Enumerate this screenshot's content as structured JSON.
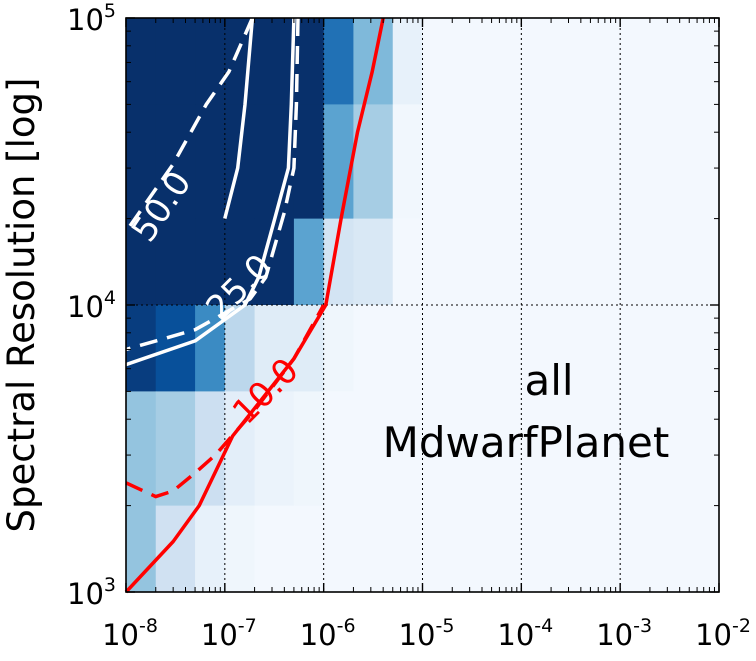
{
  "chart_data": {
    "type": "heatmap",
    "title": "",
    "xlabel": "",
    "ylabel": "Spectral Resolution [log]",
    "x_scale": "log",
    "y_scale": "log",
    "xlim": [
      1e-08,
      0.01
    ],
    "ylim": [
      1000,
      100000
    ],
    "grid": true,
    "x_ticks": [
      {
        "base": "10",
        "exp": "-8"
      },
      {
        "base": "10",
        "exp": "-7"
      },
      {
        "base": "10",
        "exp": "-6"
      },
      {
        "base": "10",
        "exp": "-5"
      },
      {
        "base": "10",
        "exp": "-4"
      },
      {
        "base": "10",
        "exp": "-3"
      },
      {
        "base": "10",
        "exp": "-2"
      }
    ],
    "y_ticks": [
      {
        "base": "10",
        "exp": "3"
      },
      {
        "base": "10",
        "exp": "4"
      },
      {
        "base": "10",
        "exp": "5"
      }
    ],
    "annotation": [
      "all",
      "MdwarfPlanet"
    ],
    "colormap": "Blues",
    "x_edges": [
      1e-08,
      2e-08,
      5e-08,
      1e-07,
      2e-07,
      5e-07,
      1e-06,
      2e-06,
      5e-06,
      1e-05,
      0.0001,
      0.001,
      0.01
    ],
    "y_edges": [
      1000,
      2000,
      5000,
      10000,
      20000,
      50000,
      100000
    ],
    "cells_top_to_bottom": [
      [
        1.0,
        1.0,
        1.0,
        1.0,
        1.0,
        1.0,
        0.75,
        0.45,
        0.08,
        0.02,
        0.02,
        0.02
      ],
      [
        1.0,
        1.0,
        1.0,
        1.0,
        1.0,
        1.0,
        0.55,
        0.35,
        0.03,
        0.02,
        0.02,
        0.02
      ],
      [
        1.0,
        1.0,
        1.0,
        1.0,
        1.0,
        0.55,
        0.18,
        0.15,
        0.02,
        0.02,
        0.02,
        0.02
      ],
      [
        0.95,
        0.88,
        0.65,
        0.28,
        0.12,
        0.12,
        0.04,
        0.02,
        0.02,
        0.02,
        0.02,
        0.02
      ],
      [
        0.4,
        0.35,
        0.22,
        0.1,
        0.06,
        0.04,
        0.02,
        0.02,
        0.02,
        0.02,
        0.02,
        0.02
      ],
      [
        0.4,
        0.2,
        0.08,
        0.04,
        0.02,
        0.02,
        0.02,
        0.02,
        0.02,
        0.02,
        0.02,
        0.02
      ]
    ],
    "contours": [
      {
        "label": "50.0",
        "color": "#ffffff",
        "style": "solid",
        "points": [
          [
            1.9e-07,
            100000
          ],
          [
            1.6e-07,
            50000
          ],
          [
            1.35e-07,
            30000
          ],
          [
            1e-07,
            20000
          ]
        ]
      },
      {
        "label": "50.0",
        "color": "#ffffff",
        "style": "dashed",
        "points": [
          [
            1.9e-07,
            100000
          ],
          [
            1.1e-07,
            65000
          ],
          [
            6.5e-08,
            50000
          ],
          [
            3e-08,
            31000
          ],
          [
            1e-08,
            18000
          ]
        ]
      },
      {
        "label": "25.0",
        "color": "#ffffff",
        "style": "solid",
        "points": [
          [
            5e-07,
            100000
          ],
          [
            4.7e-07,
            50000
          ],
          [
            4.4e-07,
            30000
          ],
          [
            3.2e-07,
            20000
          ],
          [
            2.2e-07,
            12500
          ],
          [
            1.6e-07,
            10000
          ],
          [
            5e-08,
            7500
          ],
          [
            1e-08,
            6200
          ]
        ]
      },
      {
        "label": "25.0",
        "color": "#ffffff",
        "style": "dashed",
        "points": [
          [
            5.5e-07,
            100000
          ],
          [
            5.3e-07,
            50000
          ],
          [
            5e-07,
            30000
          ],
          [
            4e-07,
            21000
          ],
          [
            2.6e-07,
            12500
          ],
          [
            1.8e-07,
            10500
          ],
          [
            5e-08,
            8200
          ],
          [
            1e-08,
            7000
          ]
        ]
      },
      {
        "label": "10.0",
        "color": "#ff0000",
        "style": "solid",
        "points": [
          [
            1e-08,
            1000
          ],
          [
            3e-08,
            1500
          ],
          [
            5.5e-08,
            2000
          ],
          [
            1.2e-07,
            3500
          ],
          [
            5e-07,
            6500
          ],
          [
            1.05e-06,
            10000
          ],
          [
            1.5e-06,
            20000
          ],
          [
            2.2e-06,
            40000
          ],
          [
            3.1e-06,
            65000
          ],
          [
            4e-06,
            100000
          ]
        ]
      },
      {
        "label": "10.0",
        "color": "#ff0000",
        "style": "dashed",
        "points": [
          [
            1e-08,
            2400
          ],
          [
            2e-08,
            2150
          ],
          [
            3e-08,
            2250
          ],
          [
            5e-08,
            2600
          ],
          [
            8e-08,
            3000
          ],
          [
            2e-07,
            4300
          ],
          [
            5e-07,
            6500
          ],
          [
            1e-06,
            10000
          ]
        ]
      }
    ],
    "contour_labels": [
      {
        "text": "50.0",
        "x": 2.3e-08,
        "y": 22000,
        "angle": -56,
        "color": "#ffffff"
      },
      {
        "text": "25.0",
        "x": 1.4e-07,
        "y": 11500,
        "angle": -45,
        "color": "#ffffff"
      },
      {
        "text": "10.0",
        "x": 2.6e-07,
        "y": 5000,
        "angle": -45,
        "color": "#ff0000"
      }
    ]
  }
}
